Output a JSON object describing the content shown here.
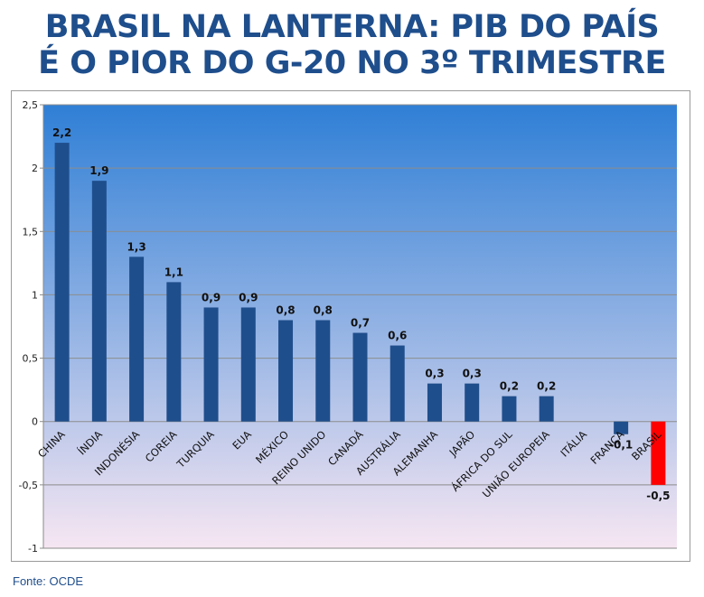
{
  "title": {
    "line1": "BRASIL NA LANTERNA: PIB DO PAÍS",
    "line2": "É O PIOR DO G-20 NO 3º TRIMESTRE"
  },
  "source": "Fonte: OCDE",
  "colors": {
    "title": "#1f4e8c",
    "bar": "#1f4e8c",
    "highlight_bar": "#ff0000",
    "plot_top": "#2f7fd6",
    "plot_bottom": "#f6e6f2"
  },
  "chart_data": {
    "type": "bar",
    "categories": [
      "CHINA",
      "ÍNDIA",
      "INDONÉSIA",
      "COREIA",
      "TURQUIA",
      "EUA",
      "MÉXICO",
      "REINO UNIDO",
      "CANADÁ",
      "AUSTRÁLIA",
      "ALEMANHA",
      "JAPÃO",
      "ÁFRICA DO SUL",
      "UNIÃO EUROPEIA",
      "ITÁLIA",
      "FRANÇA",
      "BRASIL"
    ],
    "values": [
      2.2,
      1.9,
      1.3,
      1.1,
      0.9,
      0.9,
      0.8,
      0.8,
      0.7,
      0.6,
      0.3,
      0.3,
      0.2,
      0.2,
      0,
      -0.1,
      -0.5
    ],
    "data_labels": [
      "2,2",
      "1,9",
      "1,3",
      "1,1",
      "0,9",
      "0,9",
      "0,8",
      "0,8",
      "0,7",
      "0,6",
      "0,3",
      "0,3",
      "0,2",
      "0,2",
      "",
      "-0,1",
      "-0,5"
    ],
    "highlight": "BRASIL",
    "ylim": [
      -1,
      2.5
    ],
    "yticks": [
      2.5,
      2,
      1.5,
      1,
      0.5,
      0,
      -0.5,
      -1
    ],
    "ytick_labels": [
      "2,5",
      "2",
      "1,5",
      "1",
      "0,5",
      "0",
      "-0,5",
      "-1"
    ],
    "grid": true,
    "legend": "none",
    "xlabel": "",
    "ylabel": ""
  }
}
